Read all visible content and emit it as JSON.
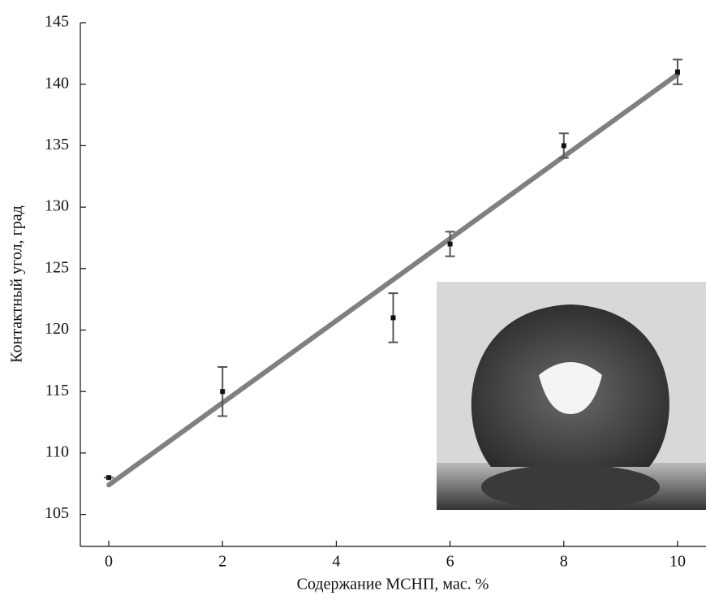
{
  "chart_data": {
    "type": "scatter",
    "xlabel": "Содержание МСНП, мас. %",
    "ylabel": "Контактный угол, град",
    "xlim": [
      -0.5,
      10.5
    ],
    "ylim": [
      102.4,
      145
    ],
    "xticks": [
      0,
      2,
      4,
      6,
      8,
      10
    ],
    "yticks": [
      105,
      110,
      115,
      120,
      125,
      130,
      135,
      140,
      145
    ],
    "x": [
      0,
      2,
      5,
      6,
      8,
      10
    ],
    "values": [
      108,
      115,
      121,
      127,
      135,
      141
    ],
    "errors": [
      0,
      2,
      2,
      1,
      1,
      1
    ],
    "color": "#111111",
    "error_color": "#555555",
    "fit": {
      "x": [
        0,
        10
      ],
      "values": [
        107.4,
        140.8
      ],
      "color": "#808080"
    }
  }
}
